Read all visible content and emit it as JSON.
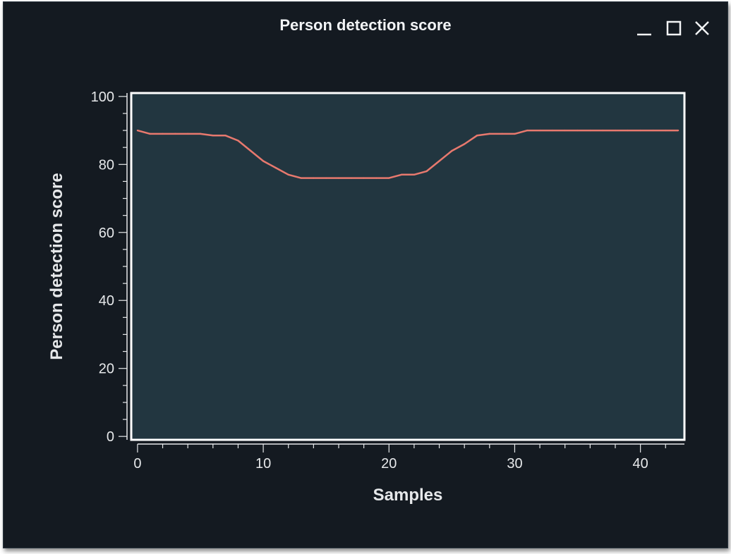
{
  "window": {
    "title": "Person detection score",
    "controls": [
      "minimize-icon",
      "maximize-icon",
      "close-icon"
    ]
  },
  "colors": {
    "background": "#141a21",
    "plot_area": "#223640",
    "plot_border": "#ffffff",
    "line": "#e8796e",
    "text": "#e6e8ea"
  },
  "chart_data": {
    "type": "line",
    "title": "Person detection score",
    "xlabel": "Samples",
    "ylabel": "Person detection score",
    "xlim": [
      -0.5,
      43.5
    ],
    "ylim": [
      -1,
      101
    ],
    "x_ticks": [
      0,
      10,
      20,
      30,
      40
    ],
    "y_ticks": [
      0,
      20,
      40,
      60,
      80,
      100
    ],
    "grid": false,
    "series": [
      {
        "x": [
          0,
          1,
          2,
          3,
          4,
          5,
          6,
          7,
          8,
          9,
          10,
          11,
          12,
          13,
          14,
          15,
          16,
          17,
          18,
          19,
          20,
          21,
          22,
          23,
          24,
          25,
          26,
          27,
          28,
          29,
          30,
          31,
          32,
          33,
          34,
          35,
          36,
          37,
          38,
          39,
          40,
          41,
          42,
          43
        ],
        "y": [
          90,
          89,
          89,
          89,
          89,
          89,
          88.5,
          88.5,
          87,
          84,
          81,
          79,
          77,
          76,
          76,
          76,
          76,
          76,
          76,
          76,
          76,
          77,
          77,
          78,
          81,
          84,
          86,
          88.5,
          89,
          89,
          89,
          90,
          90,
          90,
          90,
          90,
          90,
          90,
          90,
          90,
          90,
          90,
          90,
          90
        ]
      }
    ]
  }
}
